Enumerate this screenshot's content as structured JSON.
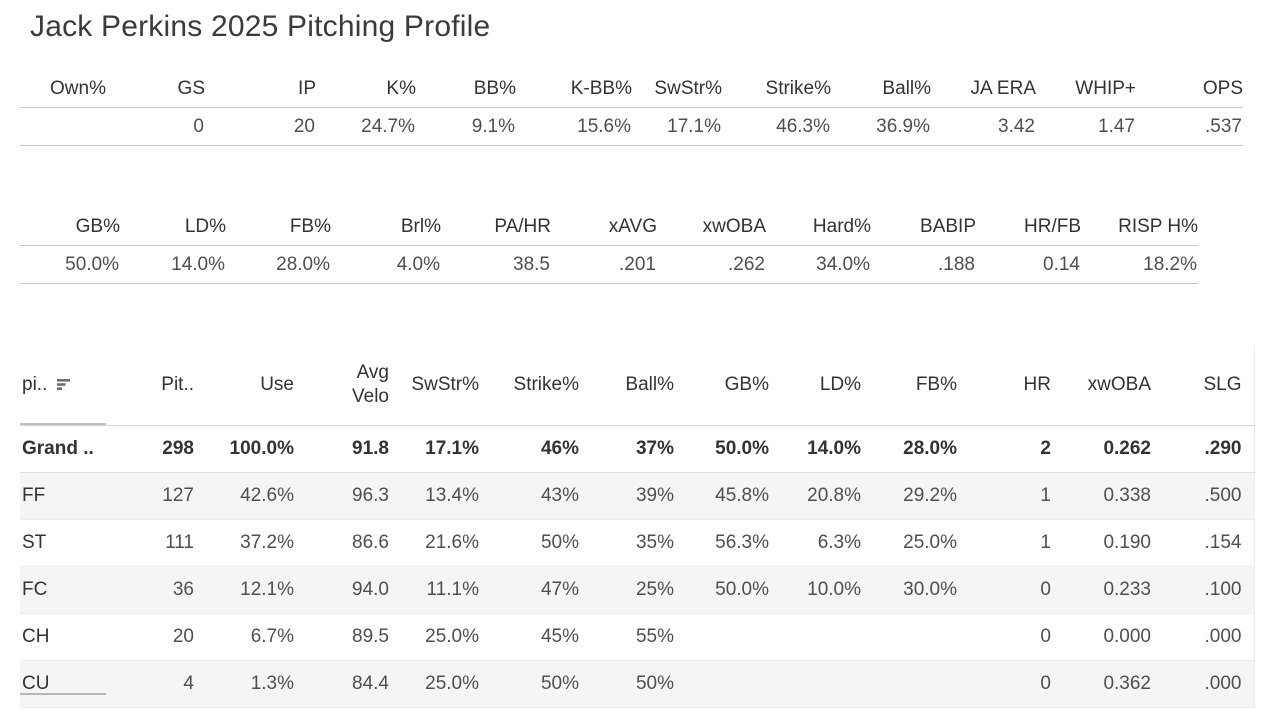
{
  "title": "Jack Perkins 2025 Pitching Profile",
  "colors": {
    "text_primary": "#333333",
    "text_secondary": "#4f4f4f",
    "row_band": "#f5f5f5",
    "rule_medium": "#c9c9c9",
    "rule_light": "#ececec",
    "background": "#ffffff"
  },
  "icons": {
    "pitch_header_sort": "sort-descending-icon"
  },
  "chart_data": [
    {
      "type": "table",
      "name": "season-summary-line-1",
      "columns": [
        "Own%",
        "GS",
        "IP",
        "K%",
        "BB%",
        "K-BB%",
        "SwStr%",
        "Strike%",
        "Ball%",
        "JA ERA",
        "WHIP+",
        "OPS"
      ],
      "rows": [
        [
          "",
          "0",
          "20",
          "24.7%",
          "9.1%",
          "15.6%",
          "17.1%",
          "46.3%",
          "36.9%",
          "3.42",
          "1.47",
          ".537"
        ]
      ]
    },
    {
      "type": "table",
      "name": "season-summary-line-2",
      "columns": [
        "GB%",
        "LD%",
        "FB%",
        "Brl%",
        "PA/HR",
        "xAVG",
        "xwOBA",
        "Hard%",
        "BABIP",
        "HR/FB",
        "RISP H%"
      ],
      "rows": [
        [
          "50.0%",
          "14.0%",
          "28.0%",
          "4.0%",
          "38.5",
          ".201",
          ".262",
          "34.0%",
          ".188",
          "0.14",
          "18.2%"
        ]
      ]
    },
    {
      "type": "table",
      "name": "pitch-type-breakdown",
      "columns": [
        "pi..",
        "Pit..",
        "Use",
        "Avg Velo",
        "SwStr%",
        "Strike%",
        "Ball%",
        "GB%",
        "LD%",
        "FB%",
        "HR",
        "xwOBA",
        "SLG"
      ],
      "rows": [
        [
          "Grand ..",
          "298",
          "100.0%",
          "91.8",
          "17.1%",
          "46%",
          "37%",
          "50.0%",
          "14.0%",
          "28.0%",
          "2",
          "0.262",
          ".290"
        ],
        [
          "FF",
          "127",
          "42.6%",
          "96.3",
          "13.4%",
          "43%",
          "39%",
          "45.8%",
          "20.8%",
          "29.2%",
          "1",
          "0.338",
          ".500"
        ],
        [
          "ST",
          "111",
          "37.2%",
          "86.6",
          "21.6%",
          "50%",
          "35%",
          "56.3%",
          "6.3%",
          "25.0%",
          "1",
          "0.190",
          ".154"
        ],
        [
          "FC",
          "36",
          "12.1%",
          "94.0",
          "11.1%",
          "47%",
          "25%",
          "50.0%",
          "10.0%",
          "30.0%",
          "0",
          "0.233",
          ".100"
        ],
        [
          "CH",
          "20",
          "6.7%",
          "89.5",
          "25.0%",
          "45%",
          "55%",
          "",
          "",
          "",
          "0",
          "0.000",
          ".000"
        ],
        [
          "CU",
          "4",
          "1.3%",
          "84.4",
          "25.0%",
          "50%",
          "50%",
          "",
          "",
          "",
          "0",
          "0.362",
          ".000"
        ]
      ],
      "grand_total_row_index": 0
    }
  ]
}
